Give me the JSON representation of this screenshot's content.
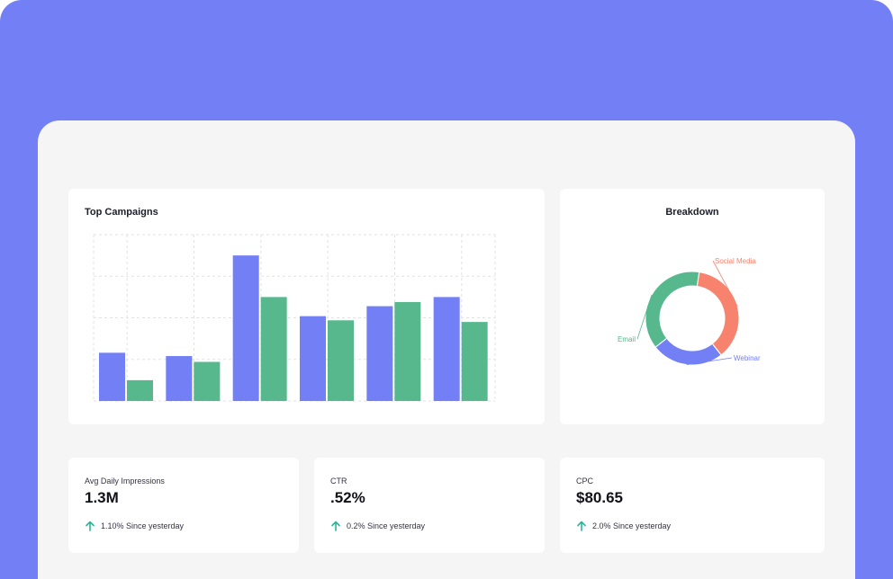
{
  "colors": {
    "background": "#737ff4",
    "panel": "#f5f5f5",
    "card": "#ffffff",
    "series_primary": "#737ff4",
    "series_secondary": "#56b88c",
    "social_media": "#f7836e",
    "positive": "#2eb39a"
  },
  "campaigns": {
    "title": "Top Campaigns",
    "chart_data": {
      "type": "bar",
      "title": "Top Campaigns",
      "categories": [
        "",
        "",
        "",
        "",
        "",
        ""
      ],
      "ylim": [
        0,
        200
      ],
      "grid": true,
      "series": [
        {
          "color": "#737ff4",
          "values": [
            58,
            54,
            175,
            102,
            114,
            125
          ]
        },
        {
          "color": "#56b88c",
          "values": [
            25,
            47,
            125,
            97,
            119,
            95
          ]
        }
      ]
    }
  },
  "breakdown": {
    "title": "Breakdown",
    "chart_data": {
      "type": "pie",
      "title": "Breakdown",
      "donut": true,
      "slices": [
        {
          "label": "Social Media",
          "value": 37,
          "color": "#f7836e"
        },
        {
          "label": "Webinar",
          "value": 25,
          "color": "#737ff4"
        },
        {
          "label": "Email",
          "value": 38,
          "color": "#56b88c"
        }
      ]
    }
  },
  "stats": [
    {
      "label": "Avg Daily Impressions",
      "value": "1.3M",
      "change": "1.10% Since yesterday",
      "icon": "arrow-up-icon"
    },
    {
      "label": "CTR",
      "value": ".52%",
      "change": "0.2% Since yesterday",
      "icon": "arrow-up-icon"
    },
    {
      "label": "CPC",
      "value": "$80.65",
      "change": "2.0% Since yesterday",
      "icon": "arrow-up-icon"
    }
  ]
}
